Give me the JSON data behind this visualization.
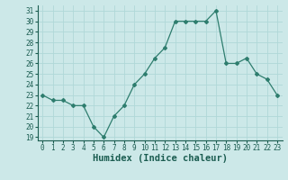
{
  "x": [
    0,
    1,
    2,
    3,
    4,
    5,
    6,
    7,
    8,
    9,
    10,
    11,
    12,
    13,
    14,
    15,
    16,
    17,
    18,
    19,
    20,
    21,
    22,
    23
  ],
  "y": [
    23,
    22.5,
    22.5,
    22,
    22,
    20,
    19,
    21,
    22,
    24,
    25,
    26.5,
    27.5,
    30,
    30,
    30,
    30,
    31,
    26,
    26,
    26.5,
    25,
    24.5,
    23
  ],
  "line_color": "#2e7d6e",
  "marker": "D",
  "marker_size": 2.0,
  "bg_color": "#cce8e8",
  "grid_color": "#b0d8d8",
  "xlabel": "Humidex (Indice chaleur)",
  "ylim_min": 19,
  "ylim_max": 32,
  "yticks": [
    19,
    20,
    21,
    22,
    23,
    24,
    25,
    26,
    27,
    28,
    29,
    30,
    31
  ],
  "xticks": [
    0,
    1,
    2,
    3,
    4,
    5,
    6,
    7,
    8,
    9,
    10,
    11,
    12,
    13,
    14,
    15,
    16,
    17,
    18,
    19,
    20,
    21,
    22,
    23
  ],
  "tick_fontsize": 5.5,
  "xlabel_fontsize": 7.5,
  "label_color": "#1a5c50",
  "line_width": 0.9,
  "spine_color": "#1a5c50"
}
